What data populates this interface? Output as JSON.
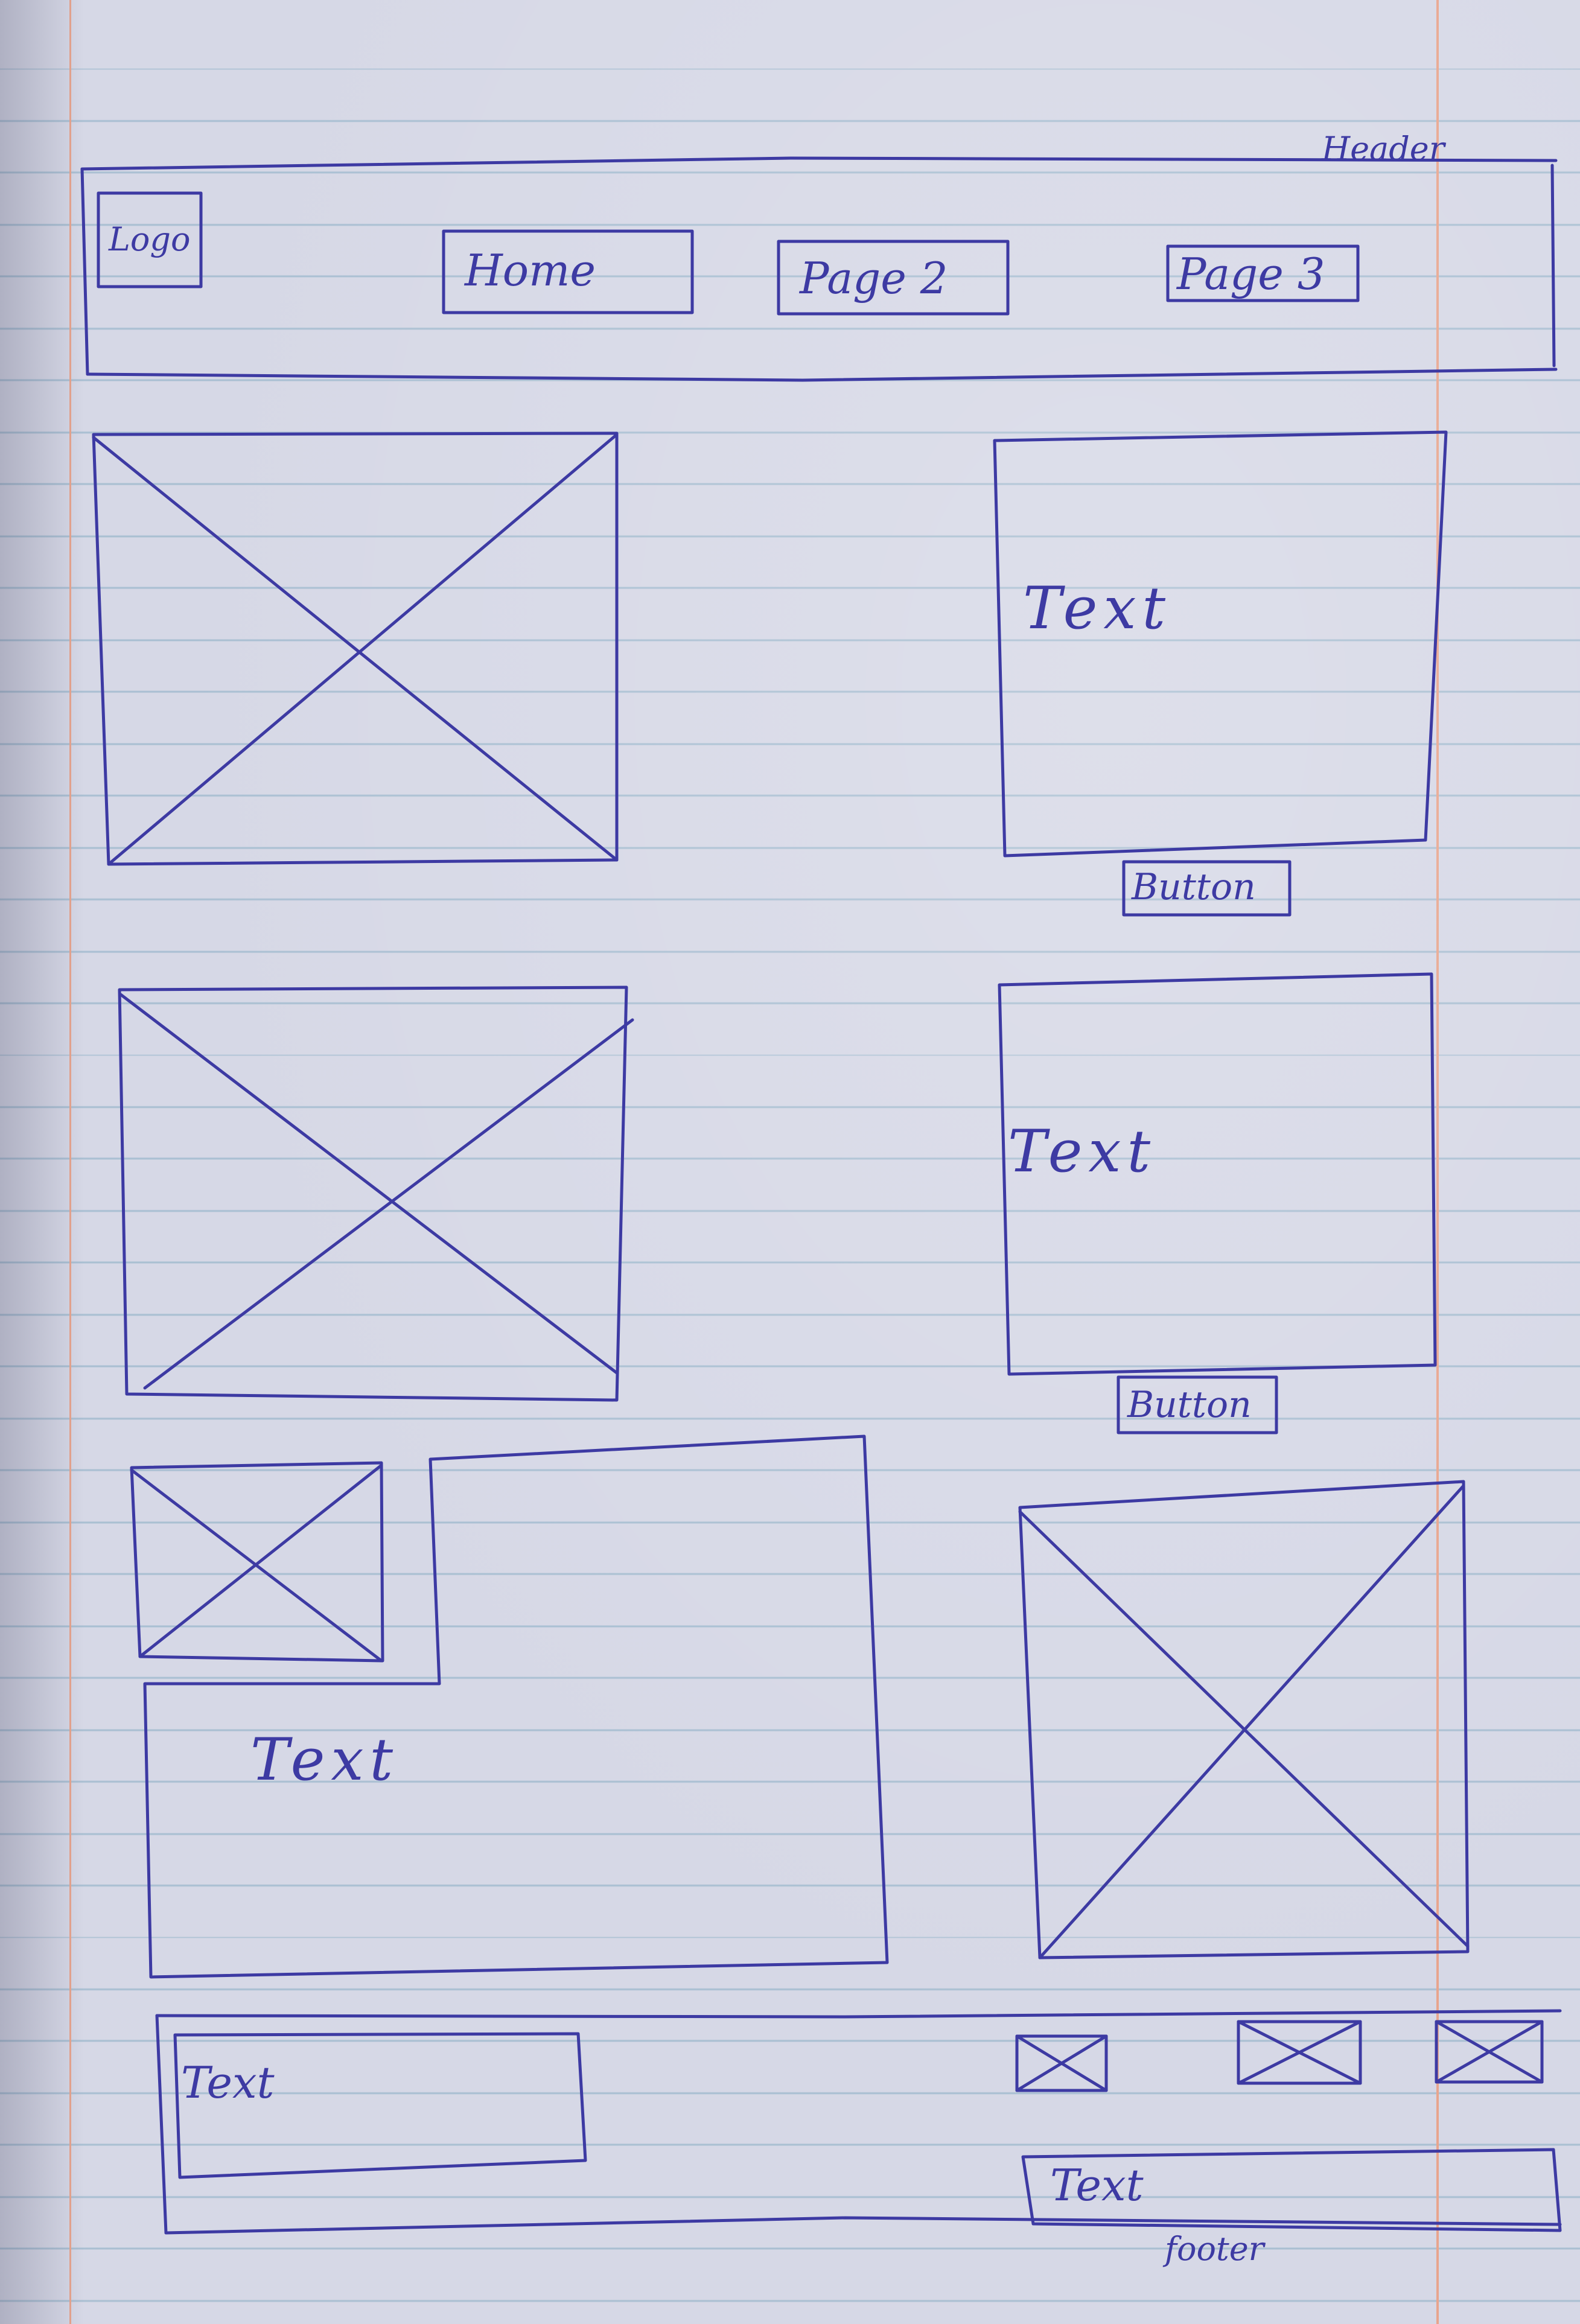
{
  "header": {
    "caption": "Header",
    "logo": "Logo",
    "nav": [
      "Home",
      "Page 2",
      "Page 3"
    ]
  },
  "blocks": {
    "text_1": "Text",
    "button_1": "Button",
    "text_2": "Text",
    "button_2": "Button",
    "text_3": "Text"
  },
  "footer": {
    "caption": "footer",
    "text_left": "Text",
    "text_right": "Text"
  },
  "colors": {
    "ink": "#3d3aa3",
    "paper": "#d6d8e6",
    "rule_line": "#a9bfd2",
    "margin_line": "#e8a58e"
  }
}
